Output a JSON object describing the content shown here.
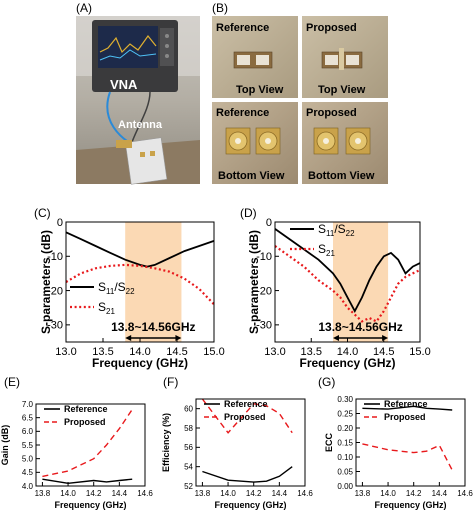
{
  "photos": {
    "A": {
      "panel": "(A)",
      "vna": "VNA",
      "antenna": "Antenna"
    },
    "B": {
      "panel": "(B)",
      "tl": {
        "title": "Reference",
        "view": "Top View"
      },
      "tr": {
        "title": "Proposed",
        "view": "Top View"
      },
      "bl": {
        "title": "Reference",
        "view": "Bottom View"
      },
      "br": {
        "title": "Proposed",
        "view": "Bottom View"
      }
    }
  },
  "colors": {
    "band": "#fbd9b4",
    "reference": "#000000",
    "proposed": "#e8191c"
  },
  "chart_data": [
    {
      "id": "C",
      "panel": "(C)",
      "type": "line",
      "xlabel": "Frequency (GHz)",
      "ylabel": "S-parameters (dB)",
      "xlim": [
        13.0,
        15.0
      ],
      "ylim": [
        -35,
        0
      ],
      "xticks": [
        "13.0",
        "13.5",
        "14.0",
        "14.5",
        "15.0"
      ],
      "yticks": [
        "-30",
        "-20",
        "-10",
        "0"
      ],
      "band": {
        "from": 13.8,
        "to": 14.56,
        "label": "13.8~14.56GHz"
      },
      "legend": {
        "s11": "S",
        "s11sub": "11",
        "slash": "/S",
        "s22sub": "22",
        "s21": "S",
        "s21sub": "21"
      },
      "series": [
        {
          "key": "s11",
          "style": "solid",
          "color": "#000000",
          "points": [
            [
              13.0,
              -3
            ],
            [
              13.2,
              -5
            ],
            [
              13.4,
              -7
            ],
            [
              13.6,
              -9
            ],
            [
              13.8,
              -11
            ],
            [
              14.0,
              -12.5
            ],
            [
              14.1,
              -13
            ],
            [
              14.2,
              -12.5
            ],
            [
              14.4,
              -10.5
            ],
            [
              14.6,
              -8.5
            ],
            [
              14.8,
              -7
            ],
            [
              15.0,
              -5.5
            ]
          ]
        },
        {
          "key": "s21",
          "style": "dotted",
          "color": "#e8191c",
          "points": [
            [
              13.0,
              -17.5
            ],
            [
              13.2,
              -15
            ],
            [
              13.4,
              -13.5
            ],
            [
              13.6,
              -12.8
            ],
            [
              13.8,
              -12.5
            ],
            [
              14.0,
              -12.8
            ],
            [
              14.2,
              -13.5
            ],
            [
              14.4,
              -14.5
            ],
            [
              14.6,
              -16.5
            ],
            [
              14.8,
              -19.5
            ],
            [
              15.0,
              -24
            ]
          ]
        }
      ]
    },
    {
      "id": "D",
      "panel": "(D)",
      "type": "line",
      "xlabel": "Frequency (GHz)",
      "ylabel": "S-parameters (dB)",
      "xlim": [
        13.0,
        15.0
      ],
      "ylim": [
        -35,
        0
      ],
      "xticks": [
        "13.0",
        "13.5",
        "14.0",
        "14.5",
        "15.0"
      ],
      "yticks": [
        "-30",
        "-20",
        "-10",
        "0"
      ],
      "band": {
        "from": 13.8,
        "to": 14.56,
        "label": "13.8~14.56GHz"
      },
      "legend": {
        "s11": "S",
        "s11sub": "11",
        "slash": "/S",
        "s22sub": "22",
        "s21": "S",
        "s21sub": "21"
      },
      "series": [
        {
          "key": "s11",
          "style": "solid",
          "color": "#000000",
          "points": [
            [
              13.0,
              -2
            ],
            [
              13.2,
              -5
            ],
            [
              13.4,
              -8
            ],
            [
              13.6,
              -11
            ],
            [
              13.8,
              -15
            ],
            [
              13.9,
              -18
            ],
            [
              14.0,
              -22
            ],
            [
              14.1,
              -26
            ],
            [
              14.2,
              -22
            ],
            [
              14.3,
              -17
            ],
            [
              14.4,
              -13
            ],
            [
              14.5,
              -10
            ],
            [
              14.6,
              -9
            ],
            [
              14.7,
              -11
            ],
            [
              14.8,
              -15
            ],
            [
              14.9,
              -13
            ],
            [
              15.0,
              -12
            ]
          ]
        },
        {
          "key": "s21",
          "style": "dotted",
          "color": "#e8191c",
          "points": [
            [
              13.0,
              -7
            ],
            [
              13.2,
              -10
            ],
            [
              13.4,
              -13
            ],
            [
              13.6,
              -17
            ],
            [
              13.8,
              -20
            ],
            [
              13.9,
              -22
            ],
            [
              14.0,
              -25
            ],
            [
              14.1,
              -27
            ],
            [
              14.2,
              -29
            ],
            [
              14.3,
              -28
            ],
            [
              14.4,
              -29
            ],
            [
              14.5,
              -26
            ],
            [
              14.6,
              -22
            ],
            [
              14.7,
              -18
            ],
            [
              14.8,
              -16
            ],
            [
              14.9,
              -15
            ],
            [
              15.0,
              -14
            ]
          ]
        }
      ]
    },
    {
      "id": "E",
      "panel": "(E)",
      "type": "line",
      "xlabel": "Frequency (GHz)",
      "ylabel": "Gain (dB)",
      "xlim": [
        13.75,
        14.6
      ],
      "ylim": [
        4.0,
        7.0
      ],
      "xticks": [
        "13.8",
        "14.0",
        "14.2",
        "14.4",
        "14.6"
      ],
      "yticks": [
        "4.0",
        "4.5",
        "5.0",
        "5.5",
        "6.0",
        "6.5",
        "7.0"
      ],
      "legend": {
        "reference": "Reference",
        "proposed": "Proposed"
      },
      "series": [
        {
          "key": "reference",
          "style": "solid",
          "color": "#000000",
          "points": [
            [
              13.8,
              4.25
            ],
            [
              14.0,
              4.1
            ],
            [
              14.2,
              4.2
            ],
            [
              14.3,
              4.15
            ],
            [
              14.4,
              4.2
            ],
            [
              14.5,
              4.25
            ]
          ]
        },
        {
          "key": "proposed",
          "style": "dashed",
          "color": "#e8191c",
          "points": [
            [
              13.8,
              4.35
            ],
            [
              14.0,
              4.55
            ],
            [
              14.2,
              5.0
            ],
            [
              14.3,
              5.5
            ],
            [
              14.4,
              6.1
            ],
            [
              14.5,
              6.8
            ]
          ]
        }
      ]
    },
    {
      "id": "F",
      "panel": "(F)",
      "type": "line",
      "xlabel": "Frequency (GHz)",
      "ylabel": "Efficiency (%)",
      "xlim": [
        13.75,
        14.6
      ],
      "ylim": [
        52,
        61
      ],
      "xticks": [
        "13.8",
        "14.0",
        "14.2",
        "14.4",
        "14.6"
      ],
      "yticks": [
        "52",
        "54",
        "56",
        "58",
        "60"
      ],
      "legend": {
        "reference": "Reference",
        "proposed": "Proposed"
      },
      "series": [
        {
          "key": "reference",
          "style": "solid",
          "color": "#000000",
          "points": [
            [
              13.8,
              53.5
            ],
            [
              14.0,
              52.6
            ],
            [
              14.2,
              52.4
            ],
            [
              14.3,
              52.5
            ],
            [
              14.4,
              53
            ],
            [
              14.5,
              54
            ]
          ]
        },
        {
          "key": "proposed",
          "style": "dashed",
          "color": "#e8191c",
          "points": [
            [
              13.8,
              61
            ],
            [
              14.0,
              57.5
            ],
            [
              14.2,
              60.5
            ],
            [
              14.3,
              60.3
            ],
            [
              14.4,
              59.5
            ],
            [
              14.5,
              57.5
            ]
          ]
        }
      ]
    },
    {
      "id": "G",
      "panel": "(G)",
      "type": "line",
      "xlabel": "Frequency (GHz)",
      "ylabel": "ECC",
      "xlim": [
        13.75,
        14.6
      ],
      "ylim": [
        0.0,
        0.3
      ],
      "xticks": [
        "13.8",
        "14.0",
        "14.2",
        "14.4",
        "14.6"
      ],
      "yticks": [
        "0.00",
        "0.05",
        "0.10",
        "0.15",
        "0.20",
        "0.25",
        "0.30"
      ],
      "legend": {
        "reference": "Reference",
        "proposed": "Proposed"
      },
      "series": [
        {
          "key": "reference",
          "style": "solid",
          "color": "#000000",
          "points": [
            [
              13.8,
              0.268
            ],
            [
              14.0,
              0.265
            ],
            [
              14.2,
              0.275
            ],
            [
              14.3,
              0.268
            ],
            [
              14.4,
              0.265
            ],
            [
              14.5,
              0.262
            ]
          ]
        },
        {
          "key": "proposed",
          "style": "dashed",
          "color": "#e8191c",
          "points": [
            [
              13.8,
              0.145
            ],
            [
              14.0,
              0.125
            ],
            [
              14.2,
              0.115
            ],
            [
              14.3,
              0.12
            ],
            [
              14.4,
              0.14
            ],
            [
              14.5,
              0.055
            ]
          ]
        }
      ]
    }
  ]
}
